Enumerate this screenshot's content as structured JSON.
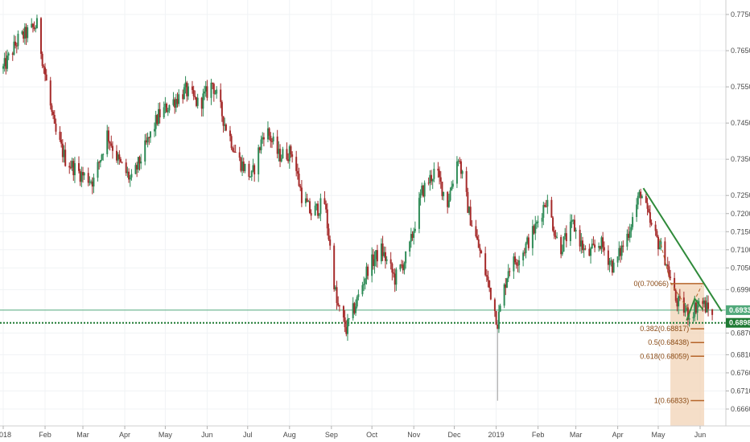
{
  "chart_data": {
    "type": "candlestick",
    "y_axis": {
      "ticks": [
        "0.77500",
        "0.76500",
        "0.75500",
        "0.74500",
        "0.73500",
        "0.72500",
        "0.72000",
        "0.71500",
        "0.71000",
        "0.70500",
        "0.69900",
        "0.68700",
        "0.68100",
        "0.67600",
        "0.67100",
        "0.66600"
      ],
      "tick_values": [
        0.775,
        0.765,
        0.755,
        0.745,
        0.735,
        0.725,
        0.72,
        0.715,
        0.71,
        0.705,
        0.699,
        0.687,
        0.681,
        0.676,
        0.671,
        0.666
      ]
    },
    "x_axis": {
      "ticks": [
        "2018",
        "Feb",
        "Mar",
        "Apr",
        "May",
        "Jun",
        "Jul",
        "Aug",
        "Sep",
        "Oct",
        "Nov",
        "Dec",
        "2019",
        "Feb",
        "Mar",
        "Apr",
        "May",
        "Jun"
      ],
      "tick_dates": [
        "2018-01-01",
        "2018-02-01",
        "2018-03-01",
        "2018-04-01",
        "2018-05-01",
        "2018-06-01",
        "2018-07-01",
        "2018-08-01",
        "2018-09-01",
        "2018-10-01",
        "2018-11-01",
        "2018-12-01",
        "2019-01-01",
        "2019-02-01",
        "2019-03-01",
        "2019-04-01",
        "2019-05-01",
        "2019-06-01"
      ]
    },
    "price_path": [
      [
        "2018-01-01",
        0.76
      ],
      [
        "2018-01-12",
        0.768
      ],
      [
        "2018-01-26",
        0.772
      ],
      [
        "2018-02-03",
        0.754
      ],
      [
        "2018-02-08",
        0.743
      ],
      [
        "2018-02-16",
        0.735
      ],
      [
        "2018-02-27",
        0.731
      ],
      [
        "2018-03-09",
        0.729
      ],
      [
        "2018-03-19",
        0.742
      ],
      [
        "2018-03-28",
        0.734
      ],
      [
        "2018-04-06",
        0.729
      ],
      [
        "2018-04-16",
        0.738
      ],
      [
        "2018-04-26",
        0.747
      ],
      [
        "2018-05-04",
        0.75
      ],
      [
        "2018-05-16",
        0.754
      ],
      [
        "2018-05-26",
        0.75
      ],
      [
        "2018-06-05",
        0.756
      ],
      [
        "2018-06-14",
        0.745
      ],
      [
        "2018-06-24",
        0.735
      ],
      [
        "2018-07-04",
        0.73
      ],
      [
        "2018-07-14",
        0.744
      ],
      [
        "2018-07-24",
        0.736
      ],
      [
        "2018-08-03",
        0.737
      ],
      [
        "2018-08-10",
        0.725
      ],
      [
        "2018-08-17",
        0.72
      ],
      [
        "2018-08-27",
        0.723
      ],
      [
        "2018-09-05",
        0.695
      ],
      [
        "2018-09-12",
        0.688
      ],
      [
        "2018-09-20",
        0.696
      ],
      [
        "2018-09-28",
        0.705
      ],
      [
        "2018-10-08",
        0.71
      ],
      [
        "2018-10-18",
        0.702
      ],
      [
        "2018-10-28",
        0.709
      ],
      [
        "2018-11-07",
        0.726
      ],
      [
        "2018-11-17",
        0.732
      ],
      [
        "2018-11-26",
        0.723
      ],
      [
        "2018-12-04",
        0.736
      ],
      [
        "2018-12-12",
        0.72
      ],
      [
        "2018-12-21",
        0.708
      ],
      [
        "2018-12-28",
        0.698
      ],
      [
        "2019-01-02",
        0.69
      ],
      [
        "2019-01-10",
        0.705
      ],
      [
        "2019-01-20",
        0.709
      ],
      [
        "2019-01-30",
        0.716
      ],
      [
        "2019-02-07",
        0.724
      ],
      [
        "2019-02-17",
        0.71
      ],
      [
        "2019-02-27",
        0.717
      ],
      [
        "2019-03-09",
        0.708
      ],
      [
        "2019-03-19",
        0.712
      ],
      [
        "2019-03-29",
        0.705
      ],
      [
        "2019-04-08",
        0.714
      ],
      [
        "2019-04-18",
        0.726
      ],
      [
        "2019-04-26",
        0.716
      ],
      [
        "2019-05-06",
        0.708
      ],
      [
        "2019-05-14",
        0.696
      ],
      [
        "2019-05-24",
        0.692
      ],
      [
        "2019-06-01",
        0.696
      ],
      [
        "2019-06-10",
        0.692
      ]
    ],
    "spike": {
      "date": "2019-01-02",
      "low": 0.6683
    },
    "horizontal_lines": [
      {
        "value": 0.69332,
        "label": "0.69332",
        "color": "#52a97b",
        "style": "solid"
      },
      {
        "value": 0.68982,
        "label": "0.68982",
        "color": "#1e7a33",
        "style": "dotted"
      }
    ],
    "fibonacci": {
      "color": "#b5642a",
      "zone_color": "#f2d3b5",
      "levels": [
        {
          "ratio": "0",
          "value": 0.70066,
          "label": "0(0.70066)"
        },
        {
          "ratio": "0.382",
          "value": 0.68817,
          "label": "0.382(0.68817)"
        },
        {
          "ratio": "0.5",
          "value": 0.68438,
          "label": "0.5(0.68438)"
        },
        {
          "ratio": "0.618",
          "value": 0.68059,
          "label": "0.618(0.68059)"
        },
        {
          "ratio": "1",
          "value": 0.66833,
          "label": "1(0.66833)"
        }
      ]
    },
    "trendline": {
      "color": "#2f8a3a",
      "points": [
        [
          "2019-04-20",
          0.727
        ],
        [
          "2019-06-17",
          0.693
        ]
      ]
    },
    "colors": {
      "up": "#2e8b57",
      "down": "#a52a2a"
    }
  }
}
